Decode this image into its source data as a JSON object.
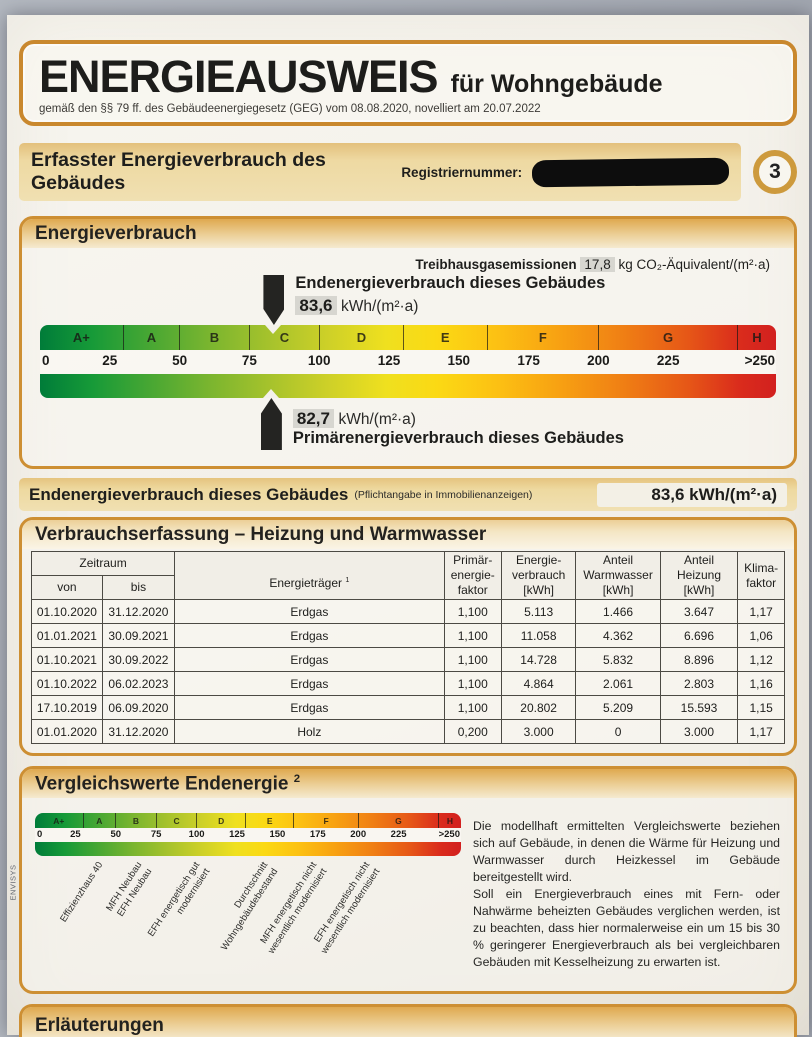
{
  "page": {
    "watermark": "ENVISYS",
    "number": "3"
  },
  "header": {
    "title": "ENERGIEAUSWEIS",
    "subtitle": "für Wohngebäude",
    "law": "gemäß den §§ 79 ff. des Gebäudeenergiegesetz (GEG) vom 08.08.2020, novelliert am 20.07.2022"
  },
  "reg_bar": {
    "title": "Erfasster Energieverbrauch des Gebäudes",
    "reg_label": "Registriernummer:"
  },
  "energy": {
    "section_title": "Energieverbrauch",
    "ghg_label": "Treibhausgasemissionen",
    "ghg_value": "17,8",
    "ghg_unit": "kg CO₂-Äquivalent/(m²·a)",
    "end_label": "Endenergieverbrauch dieses Gebäudes",
    "end_value": "83,6",
    "end_unit": "kWh/(m²·a)",
    "primary_value": "82,7",
    "primary_unit": "kWh/(m²·a)",
    "primary_label": "Primärenergieverbrauch dieses Gebäudes",
    "scale": {
      "letters": [
        "A+",
        "A",
        "B",
        "C",
        "D",
        "E",
        "F",
        "G",
        "H"
      ],
      "boundaries": [
        0,
        30,
        50,
        75,
        100,
        130,
        160,
        200,
        250
      ],
      "max": 250,
      "ticks": [
        "0",
        "25",
        "50",
        "75",
        "100",
        "125",
        "150",
        "175",
        "200",
        "225",
        ">250"
      ]
    }
  },
  "mandatory": {
    "label": "Endenergieverbrauch dieses Gebäudes",
    "note": "(Pflichtangabe in Immobilienanzeigen)",
    "value": "83,6 kWh/(m²·a)"
  },
  "usage_table": {
    "title": "Verbrauchserfassung – Heizung und Warmwasser",
    "col_zeitraum": "Zeitraum",
    "col_von": "von",
    "col_bis": "bis",
    "col_energietraeger": "Energieträger",
    "col_energietraeger_sup": "1",
    "col_pef": "Primär-\nenergie-\nfaktor",
    "col_verbrauch": "Energie-\nverbrauch\n[kWh]",
    "col_warmwasser": "Anteil\nWarmwasser\n[kWh]",
    "col_heizung": "Anteil\nHeizung\n[kWh]",
    "col_klima": "Klima-\nfaktor",
    "rows": [
      [
        "01.10.2020",
        "31.12.2020",
        "Erdgas",
        "1,100",
        "5.113",
        "1.466",
        "3.647",
        "1,17"
      ],
      [
        "01.01.2021",
        "30.09.2021",
        "Erdgas",
        "1,100",
        "11.058",
        "4.362",
        "6.696",
        "1,06"
      ],
      [
        "01.10.2021",
        "30.09.2022",
        "Erdgas",
        "1,100",
        "14.728",
        "5.832",
        "8.896",
        "1,12"
      ],
      [
        "01.10.2022",
        "06.02.2023",
        "Erdgas",
        "1,100",
        "4.864",
        "2.061",
        "2.803",
        "1,16"
      ],
      [
        "17.10.2019",
        "06.09.2020",
        "Erdgas",
        "1,100",
        "20.802",
        "5.209",
        "15.593",
        "1,15"
      ],
      [
        "01.01.2020",
        "31.12.2020",
        "Holz",
        "0,200",
        "3.000",
        "0",
        "3.000",
        "1,17"
      ]
    ]
  },
  "comparison": {
    "title": "Vergleichswerte Endenergie",
    "title_sup": "2",
    "labels": [
      "Effizienzhaus 40",
      "MFH Neubau\nEFH Neubau",
      "EFH energetisch gut\nmodernisiert",
      "Durchschnitt\nWohngebäudebestand",
      "MFH energetisch nicht\nwesentlich modernisiert",
      "EFH energetisch nicht\nwesentlich modernisiert"
    ],
    "para1": "Die modellhaft ermittelten Vergleichswerte beziehen sich auf Gebäude, in denen die Wärme für Heizung und Warmwasser durch Heizkessel im Gebäude bereitgestellt wird.",
    "para2": "Soll ein Energieverbrauch eines mit Fern- oder Nahwärme beheizten Gebäudes verglichen werden, ist zu beachten, dass hier normalerweise ein um 15 bis 30 % geringerer Energieverbrauch als bei vergleichbaren Gebäuden mit Kesselheizung zu erwarten ist."
  },
  "bottom": {
    "partial_title": "Erläuterungen"
  }
}
